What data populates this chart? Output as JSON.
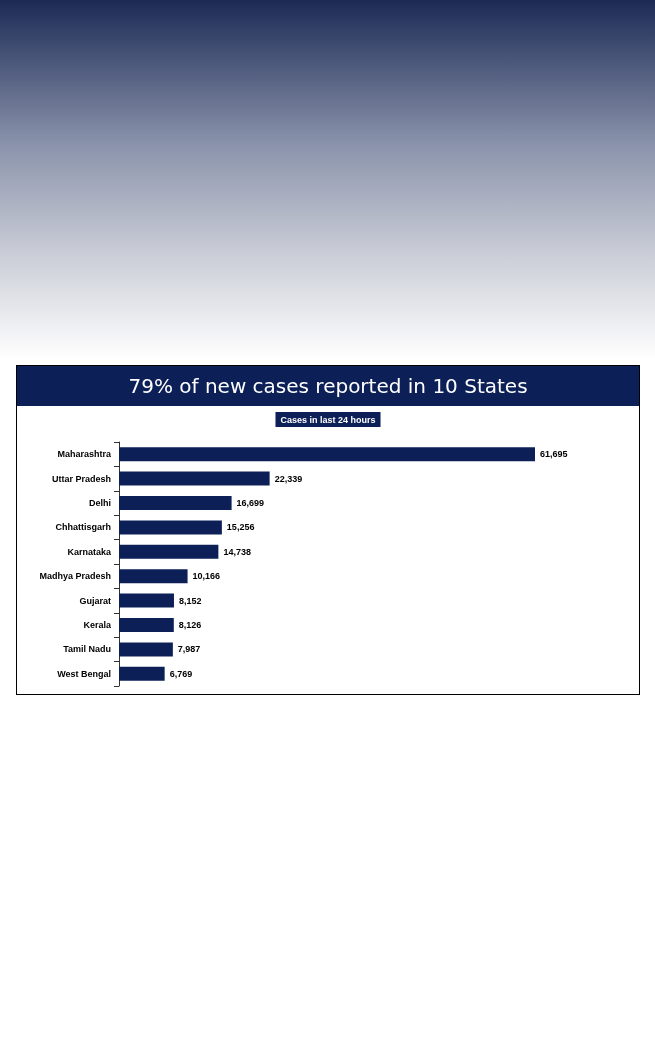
{
  "chart_data": {
    "type": "bar",
    "orientation": "horizontal",
    "title": "79% of new cases reported in 10 States",
    "subtitle": "Cases in last 24 hours",
    "categories": [
      "Maharashtra",
      "Uttar Pradesh",
      "Delhi",
      "Chhattisgarh",
      "Karnataka",
      "Madhya Pradesh",
      "Gujarat",
      "Kerala",
      "Tamil Nadu",
      "West Bengal"
    ],
    "values": [
      61695,
      22339,
      16699,
      15256,
      14738,
      10166,
      8152,
      8126,
      7987,
      6769
    ],
    "value_labels": [
      "61,695",
      "22,339",
      "16,699",
      "15,256",
      "14,738",
      "10,166",
      "8,152",
      "8,126",
      "7,987",
      "6,769"
    ],
    "color": "#0c1f57"
  }
}
